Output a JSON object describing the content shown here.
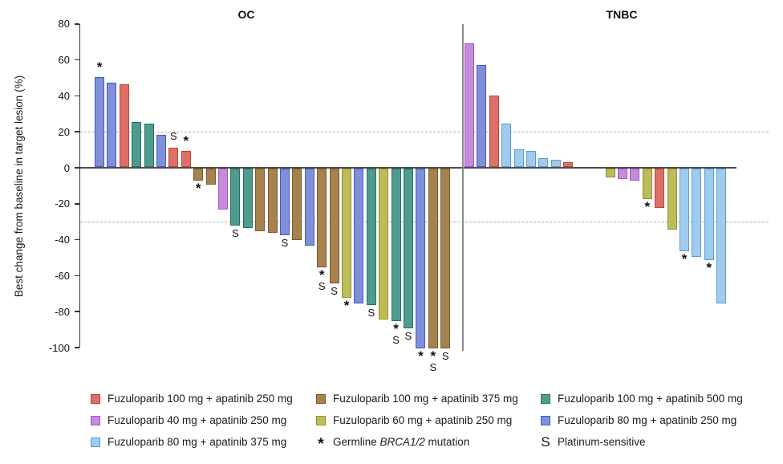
{
  "chart_data": {
    "type": "bar",
    "subtype": "waterfall",
    "title": "",
    "ylabel": "Best change from baseline in target lesion (%)",
    "xlabel": "",
    "ylim": [
      -100,
      80
    ],
    "y_ticks": [
      80,
      60,
      40,
      20,
      0,
      -20,
      -40,
      -60,
      -80,
      -100
    ],
    "reference_lines": [
      20,
      -30
    ],
    "grid": "off",
    "legend_position": "bottom",
    "flag_meanings": {
      "*": "Germline BRCA1/2 mutation",
      "S": "Platinum-sensitive"
    },
    "groups": [
      {
        "label": "OC",
        "bars": [
          {
            "value": 50,
            "treatment": "fuzu80_apa250",
            "flags": [
              "*"
            ]
          },
          {
            "value": 47,
            "treatment": "fuzu80_apa250",
            "flags": []
          },
          {
            "value": 46,
            "treatment": "fuzu100_apa250",
            "flags": []
          },
          {
            "value": 25,
            "treatment": "fuzu100_apa500",
            "flags": []
          },
          {
            "value": 24,
            "treatment": "fuzu100_apa500",
            "flags": []
          },
          {
            "value": 18,
            "treatment": "fuzu80_apa250",
            "flags": []
          },
          {
            "value": 11,
            "treatment": "fuzu100_apa250",
            "flags": [
              "S"
            ]
          },
          {
            "value": 9,
            "treatment": "fuzu100_apa250",
            "flags": [
              "*"
            ]
          },
          {
            "value": -7,
            "treatment": "fuzu100_apa375",
            "flags": [
              "*"
            ]
          },
          {
            "value": -9,
            "treatment": "fuzu100_apa375",
            "flags": []
          },
          {
            "value": -23,
            "treatment": "fuzu40_apa250",
            "flags": []
          },
          {
            "value": -32,
            "treatment": "fuzu100_apa500",
            "flags": [
              "S"
            ]
          },
          {
            "value": -33,
            "treatment": "fuzu100_apa500",
            "flags": []
          },
          {
            "value": -35,
            "treatment": "fuzu100_apa375",
            "flags": []
          },
          {
            "value": -36,
            "treatment": "fuzu100_apa375",
            "flags": []
          },
          {
            "value": -37,
            "treatment": "fuzu80_apa250",
            "flags": [
              "S"
            ]
          },
          {
            "value": -40,
            "treatment": "fuzu100_apa375",
            "flags": []
          },
          {
            "value": -43,
            "treatment": "fuzu80_apa250",
            "flags": []
          },
          {
            "value": -55,
            "treatment": "fuzu100_apa375",
            "flags": [
              "*",
              "S"
            ]
          },
          {
            "value": -64,
            "treatment": "fuzu100_apa375",
            "flags": [
              "S"
            ]
          },
          {
            "value": -72,
            "treatment": "fuzu60_apa250",
            "flags": [
              "*"
            ]
          },
          {
            "value": -75,
            "treatment": "fuzu80_apa250",
            "flags": []
          },
          {
            "value": -76,
            "treatment": "fuzu100_apa500",
            "flags": [
              "S"
            ]
          },
          {
            "value": -84,
            "treatment": "fuzu60_apa250",
            "flags": []
          },
          {
            "value": -85,
            "treatment": "fuzu100_apa500",
            "flags": [
              "*",
              "S"
            ]
          },
          {
            "value": -89,
            "treatment": "fuzu100_apa500",
            "flags": [
              "S"
            ]
          },
          {
            "value": -100,
            "treatment": "fuzu80_apa250",
            "flags": [
              "*"
            ]
          },
          {
            "value": -100,
            "treatment": "fuzu100_apa375",
            "flags": [
              "*",
              "S"
            ]
          },
          {
            "value": -100,
            "treatment": "fuzu100_apa375",
            "flags": [
              "S"
            ]
          }
        ]
      },
      {
        "label": "TNBC",
        "bars": [
          {
            "value": 69,
            "treatment": "fuzu40_apa250",
            "flags": []
          },
          {
            "value": 57,
            "treatment": "fuzu80_apa250",
            "flags": []
          },
          {
            "value": 40,
            "treatment": "fuzu100_apa250",
            "flags": []
          },
          {
            "value": 24,
            "treatment": "fuzu80_apa375",
            "flags": []
          },
          {
            "value": 10,
            "treatment": "fuzu80_apa375",
            "flags": []
          },
          {
            "value": 9,
            "treatment": "fuzu80_apa375",
            "flags": []
          },
          {
            "value": 5,
            "treatment": "fuzu80_apa375",
            "flags": []
          },
          {
            "value": 4,
            "treatment": "fuzu80_apa375",
            "flags": []
          },
          {
            "value": 3,
            "treatment": "fuzu100_apa250",
            "flags": []
          },
          {
            "value": -5,
            "treatment": "fuzu60_apa250",
            "flags": []
          },
          {
            "value": -6,
            "treatment": "fuzu40_apa250",
            "flags": []
          },
          {
            "value": -7,
            "treatment": "fuzu40_apa250",
            "flags": []
          },
          {
            "value": -17,
            "treatment": "fuzu60_apa250",
            "flags": [
              "*"
            ]
          },
          {
            "value": -22,
            "treatment": "fuzu100_apa250",
            "flags": []
          },
          {
            "value": -34,
            "treatment": "fuzu60_apa250",
            "flags": []
          },
          {
            "value": -46,
            "treatment": "fuzu80_apa375",
            "flags": [
              "*"
            ]
          },
          {
            "value": -49,
            "treatment": "fuzu80_apa375",
            "flags": []
          },
          {
            "value": -51,
            "treatment": "fuzu80_apa375",
            "flags": [
              "*"
            ]
          },
          {
            "value": -75,
            "treatment": "fuzu80_apa375",
            "flags": []
          }
        ]
      }
    ],
    "treatments": {
      "fuzu100_apa250": {
        "label": "Fuzuloparib 100 mg + apatinib 250 mg",
        "fill": "#DD6F66",
        "stroke": "#C04237"
      },
      "fuzu100_apa375": {
        "label": "Fuzuloparib 100 mg + apatinib 375 mg",
        "fill": "#A8824E",
        "stroke": "#7A5A28"
      },
      "fuzu100_apa500": {
        "label": "Fuzuloparib 100 mg + apatinib 500 mg",
        "fill": "#4F9C8E",
        "stroke": "#237064"
      },
      "fuzu40_apa250": {
        "label": "Fuzuloparib 40 mg + apatinib 250 mg",
        "fill": "#C68BDB",
        "stroke": "#A254C4"
      },
      "fuzu60_apa250": {
        "label": "Fuzuloparib 60 mg + apatinib 250 mg",
        "fill": "#BCBD58",
        "stroke": "#8F9130"
      },
      "fuzu80_apa250": {
        "label": "Fuzuloparib 80 mg + apatinib 250 mg",
        "fill": "#7E90D8",
        "stroke": "#4559C4"
      },
      "fuzu80_apa375": {
        "label": "Fuzuloparib 80 mg + apatinib 375 mg",
        "fill": "#9FCBEF",
        "stroke": "#5B9BD5"
      }
    },
    "legend": {
      "columns": [
        [
          {
            "swatch": "fuzu100_apa250"
          },
          {
            "swatch": "fuzu40_apa250"
          },
          {
            "swatch": "fuzu80_apa375"
          }
        ],
        [
          {
            "swatch": "fuzu100_apa375"
          },
          {
            "swatch": "fuzu60_apa250"
          },
          {
            "symbol": "*",
            "text_prefix": "Germline ",
            "text_italic": "BRCA1/2",
            "text_suffix": " mutation"
          }
        ],
        [
          {
            "swatch": "fuzu100_apa500"
          },
          {
            "swatch": "fuzu80_apa250"
          },
          {
            "symbol": "S",
            "text": "Platinum-sensitive"
          }
        ]
      ]
    }
  }
}
